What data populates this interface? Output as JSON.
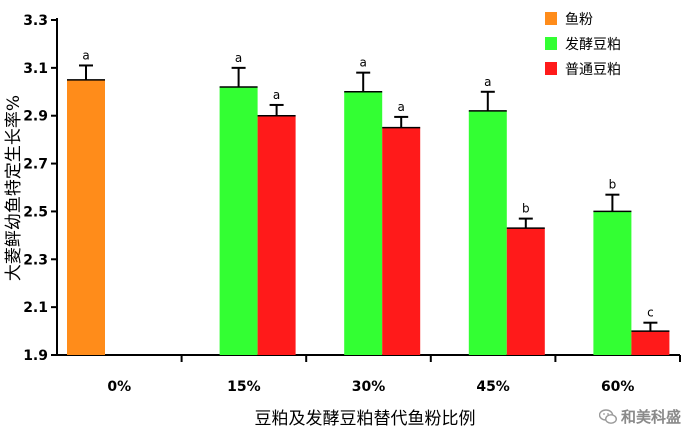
{
  "chart_data": {
    "type": "bar",
    "categories": [
      "0%",
      "15%",
      "30%",
      "45%",
      "60%"
    ],
    "xlabel": "豆粕及发酵豆粕替代鱼粉比例",
    "ylabel": "大菱鲆幼鱼特定生长率%",
    "ylim": [
      1.9,
      3.3
    ],
    "yticks": [
      "1.9",
      "2.1",
      "2.3",
      "2.5",
      "2.7",
      "2.9",
      "3.1",
      "3.3"
    ],
    "grid": false,
    "legend_position": "top-right",
    "series": [
      {
        "name": "鱼粉",
        "color": "#ff8c1a",
        "values": [
          3.05,
          null,
          null,
          null,
          null
        ],
        "errors": [
          0.06,
          null,
          null,
          null,
          null
        ],
        "letters": [
          "a",
          null,
          null,
          null,
          null
        ]
      },
      {
        "name": "发酵豆粕",
        "color": "#33ff33",
        "values": [
          null,
          3.02,
          3.0,
          2.92,
          2.5
        ],
        "errors": [
          null,
          0.08,
          0.08,
          0.08,
          0.07
        ],
        "letters": [
          null,
          "a",
          "a",
          "a",
          "b"
        ]
      },
      {
        "name": "普通豆粕",
        "color": "#ff1a1a",
        "values": [
          null,
          2.9,
          2.85,
          2.43,
          2.0
        ],
        "errors": [
          null,
          0.045,
          0.045,
          0.04,
          0.035
        ],
        "letters": [
          null,
          "a",
          "a",
          "b",
          "c"
        ]
      }
    ]
  },
  "watermark": {
    "text": "和美科盛",
    "icon": "wechat-icon"
  }
}
